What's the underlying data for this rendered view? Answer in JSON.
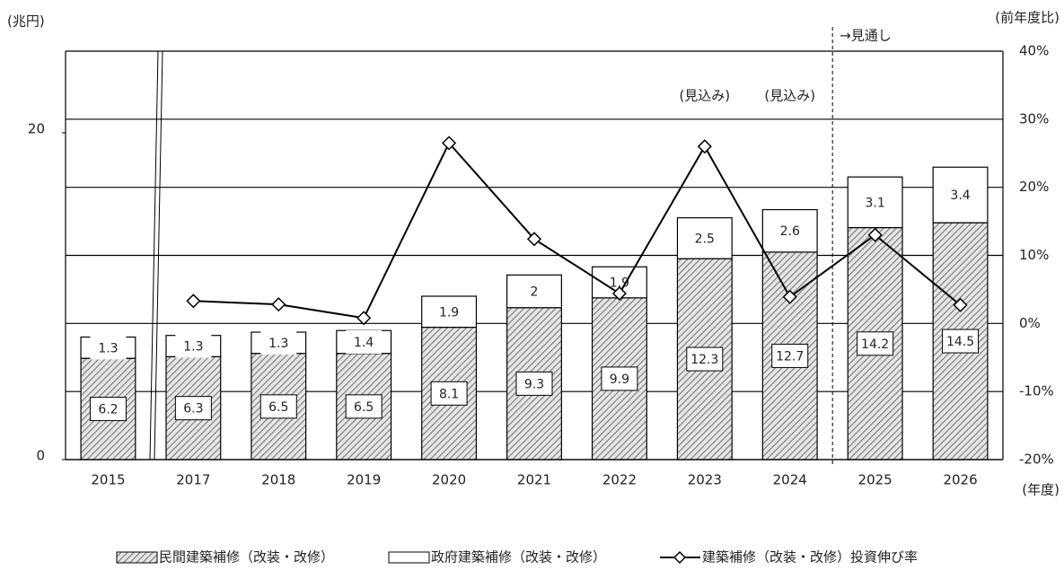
{
  "chart_data": {
    "type": "bar",
    "stacked": true,
    "y_label": "(兆円)",
    "y2_label": "(前年度比)",
    "x_label": "(年度)",
    "categories": [
      "2015",
      "2017",
      "2018",
      "2019",
      "2020",
      "2021",
      "2022",
      "2023",
      "2024",
      "2025",
      "2026"
    ],
    "series": [
      {
        "name": "民間建築補修（改装・改修）",
        "color": "#8c8c8c",
        "values": [
          6.2,
          6.3,
          6.5,
          6.5,
          8.1,
          9.3,
          9.9,
          12.3,
          12.7,
          14.2,
          14.5
        ]
      },
      {
        "name": "政府建築補修（改装・改修）",
        "color": "#ffffff",
        "values": [
          1.3,
          1.3,
          1.3,
          1.4,
          1.9,
          2.0,
          1.9,
          2.5,
          2.6,
          3.1,
          3.4
        ]
      },
      {
        "name": "建築補修（改装・改修）投資伸び率",
        "type": "line",
        "axis": "y2",
        "color": "#000000",
        "values": [
          null,
          3.3,
          2.8,
          0.8,
          26.5,
          12.4,
          4.4,
          26.0,
          3.9,
          13.0,
          2.7
        ]
      }
    ],
    "ylim": [
      0,
      25
    ],
    "yticks": [
      0,
      20
    ],
    "y2lim": [
      -20,
      40
    ],
    "y2ticks": [
      {
        "value": -20,
        "label": "-20%"
      },
      {
        "value": -10,
        "label": "-10%"
      },
      {
        "value": 0,
        "label": "0%"
      },
      {
        "value": 10,
        "label": "10%"
      },
      {
        "value": 20,
        "label": "20%"
      },
      {
        "value": 30,
        "label": "30%"
      },
      {
        "value": 40,
        "label": "40%"
      }
    ],
    "grid": true,
    "annotations": [
      "(見込み)",
      "(見込み)",
      "→見通し"
    ]
  }
}
